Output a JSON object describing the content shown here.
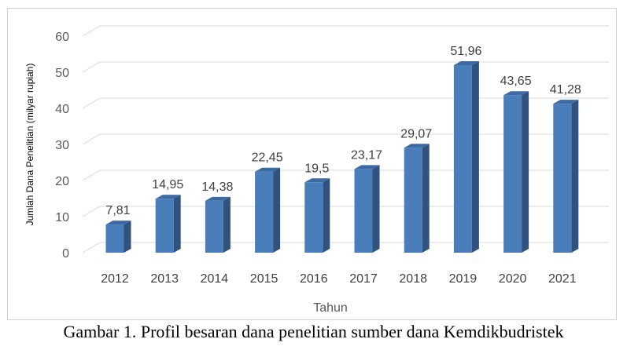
{
  "chart_data": {
    "type": "bar",
    "categories": [
      "2012",
      "2013",
      "2014",
      "2015",
      "2016",
      "2017",
      "2018",
      "2019",
      "2020",
      "2021"
    ],
    "values": [
      7.81,
      14.95,
      14.38,
      22.45,
      19.5,
      23.17,
      29.07,
      51.96,
      43.65,
      41.28
    ],
    "data_labels": [
      "7,81",
      "14,95",
      "14,38",
      "22,45",
      "19,5",
      "23,17",
      "29,07",
      "51,96",
      "43,65",
      "41,28"
    ],
    "yticks": [
      0,
      10,
      20,
      30,
      40,
      50,
      60
    ],
    "ylim": [
      0,
      60
    ],
    "xlabel": "Tahun",
    "ylabel": "Jumlah Dana Penelitian (milyar rupiah)",
    "bar_color": "#4a7ebb",
    "bar_side_color": "#2f527e",
    "bar_top_color": "#3d6aa3",
    "grid": true,
    "style": "3d-column"
  },
  "caption": "Gambar 1. Profil besaran dana penelitian sumber dana Kemdikbudristek"
}
